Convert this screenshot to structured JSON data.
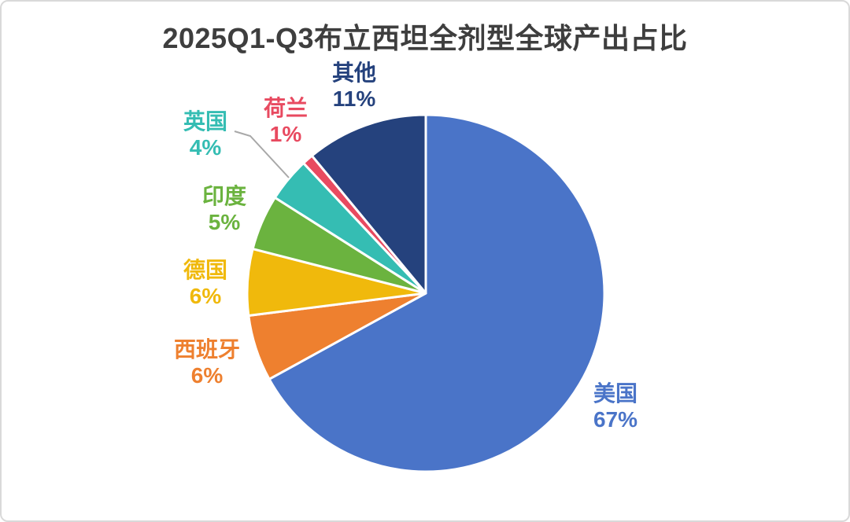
{
  "window": {
    "background": "#FFFFFF",
    "border_color": "#D9D9D9"
  },
  "title": {
    "text": "2025Q1-Q3布立西坦全剂型全球产出占比",
    "color": "#3E3E3E"
  },
  "chart_data": {
    "type": "pie",
    "title": "2025Q1-Q3布立西坦全剂型全球产出占比",
    "unit": "percent",
    "start_angle_deg": 0,
    "direction": "clockwise",
    "slice_separator_color": "#FFFFFF",
    "labels_show": "category_and_percent",
    "slices": [
      {
        "id": "usa",
        "label": "美国",
        "value": 67,
        "pct_label": "67%",
        "color": "#4A74C8"
      },
      {
        "id": "spain",
        "label": "西班牙",
        "value": 6,
        "pct_label": "6%",
        "color": "#EE802F"
      },
      {
        "id": "germany",
        "label": "德国",
        "value": 6,
        "pct_label": "6%",
        "color": "#F0B90C"
      },
      {
        "id": "india",
        "label": "印度",
        "value": 5,
        "pct_label": "5%",
        "color": "#6BB33F"
      },
      {
        "id": "uk",
        "label": "英国",
        "value": 4,
        "pct_label": "4%",
        "color": "#35BDB3"
      },
      {
        "id": "netherlands",
        "label": "荷兰",
        "value": 1,
        "pct_label": "1%",
        "color": "#E84A60"
      },
      {
        "id": "others",
        "label": "其他",
        "value": 11,
        "pct_label": "11%",
        "color": "#25427D"
      }
    ],
    "leader_line": {
      "slice": "uk",
      "color": "#A8A8A8"
    }
  }
}
